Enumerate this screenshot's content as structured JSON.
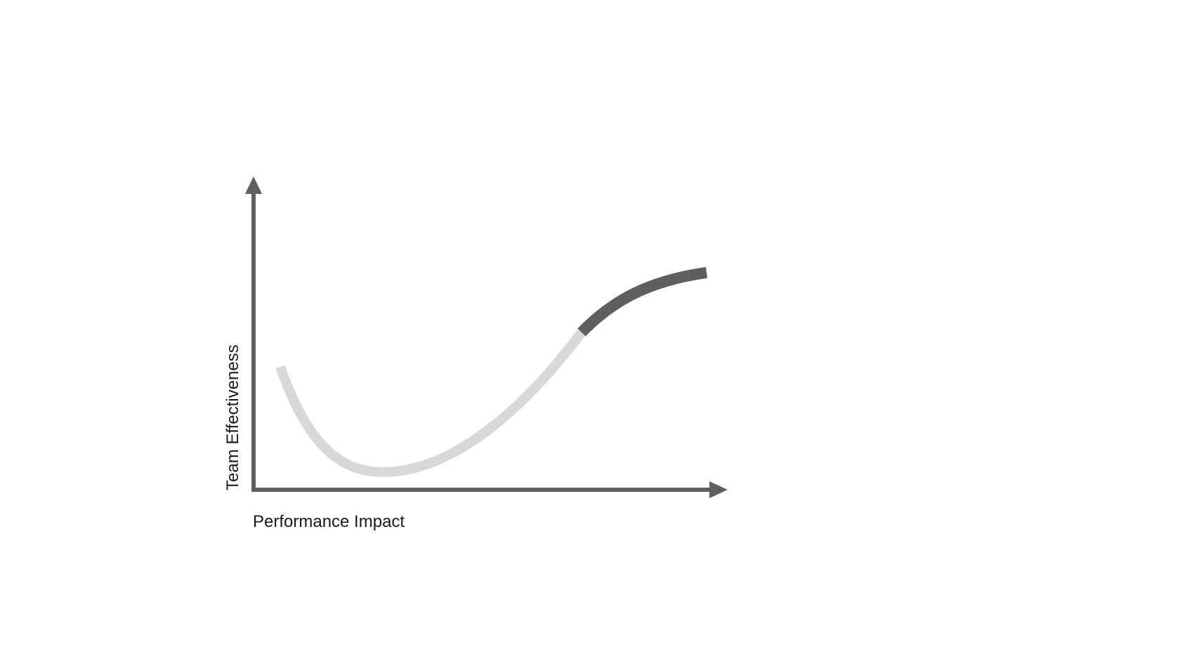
{
  "diagram": {
    "x_axis_label": "Performance Impact",
    "y_axis_label": "Team Effectiveness",
    "colors": {
      "axis": "#5f5f5f",
      "curve_dip": "#d8d8d8",
      "curve_peak": "#5f5f5f",
      "text": "#1a1a1a"
    }
  }
}
